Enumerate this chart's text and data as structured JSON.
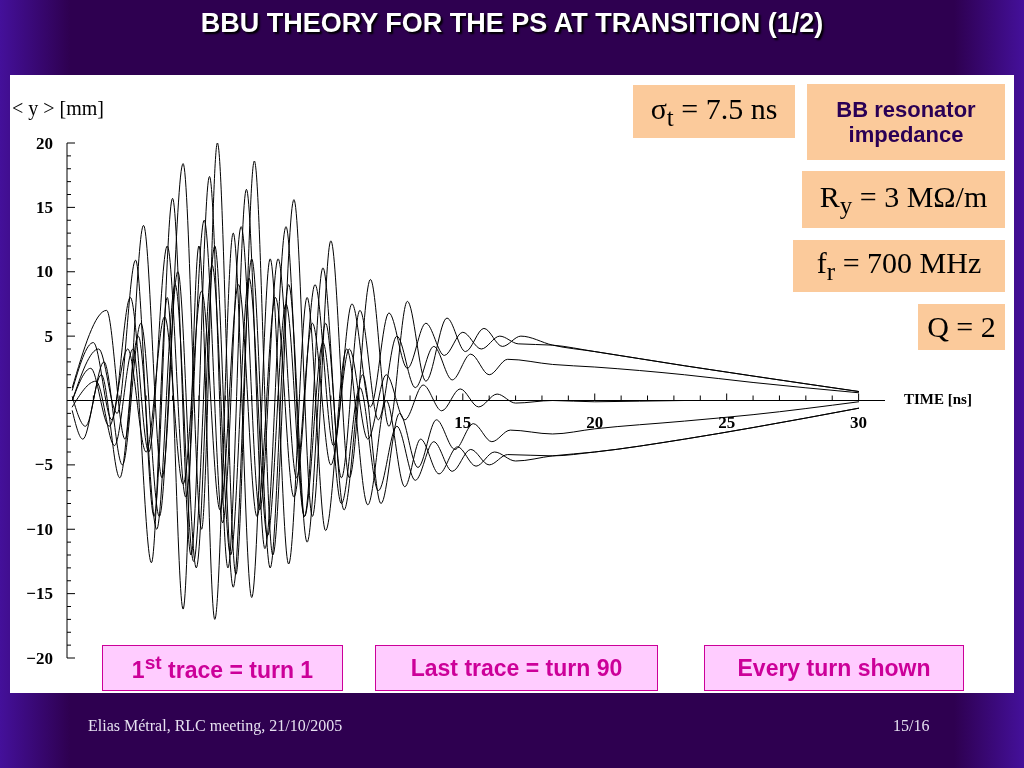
{
  "chart_data": {
    "type": "line",
    "title": "BBU THEORY FOR THE PS AT TRANSITION (1/2)",
    "xlabel": "TIME [ns]",
    "ylabel": "< y > [mm]",
    "xlim": [
      0,
      31
    ],
    "ylim": [
      -20,
      20
    ],
    "xticks": [
      {
        "value": 1,
        "label": null
      },
      {
        "value": 2,
        "label": null
      },
      {
        "value": 3,
        "label": null
      },
      {
        "value": 4,
        "label": null
      },
      {
        "value": 5,
        "label": null
      },
      {
        "value": 6,
        "label": null
      },
      {
        "value": 7,
        "label": null
      },
      {
        "value": 8,
        "label": null
      },
      {
        "value": 9,
        "label": null
      },
      {
        "value": 10,
        "label": null
      },
      {
        "value": 11,
        "label": null
      },
      {
        "value": 12,
        "label": null
      },
      {
        "value": 13,
        "label": null
      },
      {
        "value": 14,
        "label": null
      },
      15,
      {
        "value": 16,
        "label": null
      },
      {
        "value": 17,
        "label": null
      },
      {
        "value": 18,
        "label": null
      },
      {
        "value": 19,
        "label": null
      },
      20,
      {
        "value": 21,
        "label": null
      },
      {
        "value": 22,
        "label": null
      },
      {
        "value": 23,
        "label": null
      },
      {
        "value": 24,
        "label": null
      },
      25,
      {
        "value": 26,
        "label": null
      },
      {
        "value": 27,
        "label": null
      },
      {
        "value": 28,
        "label": null
      },
      {
        "value": 29,
        "label": null
      },
      30
    ],
    "yticks": [
      {
        "value": -20,
        "label": "−20"
      },
      {
        "value": -19,
        "label": null
      },
      {
        "value": -18,
        "label": null
      },
      {
        "value": -17,
        "label": null
      },
      {
        "value": -16,
        "label": null
      },
      {
        "value": -15,
        "label": "−15"
      },
      {
        "value": -14,
        "label": null
      },
      {
        "value": -13,
        "label": null
      },
      {
        "value": -12,
        "label": null
      },
      {
        "value": -11,
        "label": null
      },
      {
        "value": -10,
        "label": "−10"
      },
      {
        "value": -9,
        "label": null
      },
      {
        "value": -8,
        "label": null
      },
      {
        "value": -7,
        "label": null
      },
      {
        "value": -6,
        "label": null
      },
      {
        "value": -5,
        "label": "−5"
      },
      {
        "value": -4,
        "label": null
      },
      {
        "value": -3,
        "label": null
      },
      {
        "value": -2,
        "label": null
      },
      {
        "value": -1,
        "label": null
      },
      {
        "value": 0,
        "label": null
      },
      {
        "value": 1,
        "label": null
      },
      {
        "value": 2,
        "label": null
      },
      {
        "value": 3,
        "label": null
      },
      {
        "value": 4,
        "label": null
      },
      5,
      {
        "value": 6,
        "label": null
      },
      {
        "value": 7,
        "label": null
      },
      {
        "value": 8,
        "label": null
      },
      {
        "value": 9,
        "label": null
      },
      10,
      {
        "value": 11,
        "label": null
      },
      {
        "value": 12,
        "label": null
      },
      {
        "value": 13,
        "label": null
      },
      {
        "value": 14,
        "label": null
      },
      15,
      {
        "value": 16,
        "label": null
      },
      {
        "value": 17,
        "label": null
      },
      {
        "value": 18,
        "label": null
      },
      {
        "value": 19,
        "label": null
      },
      20
    ],
    "series": [
      {
        "color": "#000000",
        "x": [
          0.2,
          1.5,
          2.2,
          2.9,
          3.6,
          4.4,
          5.1,
          5.7,
          6.4,
          7.1,
          7.8,
          8.6,
          9.3,
          10.0,
          10.7,
          11.5,
          12.2,
          12.9,
          13.6,
          14.4,
          15.1,
          15.8,
          16.5,
          17.2,
          18.4,
          20,
          23.4,
          26,
          30
        ],
        "values": [
          1.0,
          7.0,
          -3.0,
          13.6,
          -6.0,
          18.4,
          -10.0,
          20.0,
          -13.5,
          18.6,
          -12.0,
          15.6,
          -9.0,
          12.4,
          -6.0,
          9.4,
          -2.0,
          7.7,
          1.5,
          6.4,
          3.8,
          5.6,
          4.2,
          5.0,
          4.3,
          3.8,
          2.7,
          1.9,
          0.7
        ]
      },
      {
        "color": "#000000",
        "x": [
          0.2,
          1.1,
          1.8,
          2.5,
          3.2,
          3.8,
          4.4,
          5.0,
          5.6,
          6.3,
          7.0,
          7.7,
          8.4,
          9.1,
          9.8,
          10.6,
          11.4,
          12.1,
          12.8,
          13.4,
          14.1,
          14.8,
          15.5,
          16.2,
          17.0,
          18.4,
          20,
          23.4,
          26,
          30
        ],
        "values": [
          -0.5,
          1.5,
          -3.5,
          4.0,
          -12.6,
          8.0,
          -16.2,
          12.0,
          -17.0,
          13.0,
          -15.3,
          11.0,
          -12.7,
          8.0,
          -10.1,
          4.0,
          -8.1,
          0.0,
          -6.7,
          -3.0,
          -5.7,
          -3.6,
          -5.1,
          -4.0,
          -4.7,
          -4.3,
          -4.0,
          -3.0,
          -2.1,
          -0.6
        ]
      },
      {
        "color": "#000000",
        "x": [
          0.2,
          1.2,
          1.9,
          2.6,
          3.3,
          4.0,
          4.7,
          5.4,
          6.1,
          6.8,
          7.5,
          8.3,
          9.0,
          9.7,
          10.4,
          11.1,
          11.8,
          12.5,
          13.2,
          13.9,
          14.6,
          15.3,
          16.0,
          16.7,
          18.4,
          20,
          23.4,
          26,
          30
        ],
        "values": [
          0.0,
          4.0,
          -1.0,
          10.9,
          -9.0,
          15.7,
          -12.0,
          17.4,
          -13.0,
          16.4,
          -11.5,
          13.5,
          -9.0,
          10.3,
          -6.0,
          7.0,
          -1.5,
          5.0,
          1.0,
          4.2,
          1.6,
          3.6,
          2.0,
          3.2,
          2.8,
          2.6,
          2.0,
          1.4,
          0.6
        ]
      },
      {
        "color": "#000000",
        "x": [
          0.2,
          0.7,
          1.4,
          2.1,
          2.8,
          3.5,
          4.2,
          4.9,
          5.6,
          6.3,
          7.0,
          7.7,
          8.4,
          9.1,
          9.8,
          10.5,
          11.2,
          11.9,
          12.6,
          13.3,
          14.0,
          14.7,
          15.4,
          16.1,
          16.8,
          18.4,
          20,
          23.4,
          26,
          30
        ],
        "values": [
          0.3,
          -2.0,
          3.0,
          -5.0,
          6.0,
          -9.0,
          10.0,
          -13.0,
          12.0,
          -14.5,
          11.0,
          -13.0,
          9.0,
          -11.0,
          6.0,
          -8.5,
          2.0,
          -8.0,
          -1.0,
          -5.2,
          -1.5,
          -3.8,
          -1.8,
          -3.2,
          -2.3,
          -2.6,
          -2.2,
          -1.6,
          -1.1,
          -0.1
        ]
      },
      {
        "color": "#000000",
        "x": [
          0.2,
          0.9,
          1.6,
          2.3,
          3.0,
          3.7,
          4.4,
          5.1,
          5.8,
          6.5,
          7.2,
          7.9,
          8.6,
          9.3,
          10.0,
          10.7,
          11.4,
          12.1,
          12.8,
          13.5,
          14.2,
          14.9,
          15.6,
          16.3,
          17.0,
          18.4,
          20,
          23.4,
          26,
          30
        ],
        "values": [
          0.0,
          2.5,
          -2.0,
          4.0,
          -4.0,
          6.5,
          -6.5,
          8.5,
          -8.5,
          9.0,
          -9.0,
          8.0,
          -7.5,
          6.0,
          -5.0,
          4.0,
          -3.0,
          2.0,
          -1.5,
          1.2,
          -0.8,
          0.9,
          -0.5,
          0.5,
          -0.2,
          0.0,
          -0.1,
          0.0,
          0.0,
          0.0
        ]
      },
      {
        "color": "#000000",
        "x": [
          0.2,
          1.0,
          1.7,
          2.4,
          3.1,
          3.8,
          4.5,
          5.2,
          5.9,
          6.6,
          7.3,
          8.0,
          8.7,
          9.4,
          10.1,
          10.8,
          11.5,
          12.2,
          12.9,
          13.6,
          14.3,
          15.0,
          15.7,
          16.4,
          17.1,
          18.4,
          20,
          23.4,
          26,
          30
        ],
        "values": [
          0.8,
          4.5,
          -1.5,
          8.0,
          -4.0,
          12.0,
          -7.5,
          14.0,
          -9.5,
          13.5,
          -8.5,
          11.0,
          -6.0,
          9.0,
          -3.5,
          7.5,
          -0.5,
          6.8,
          2.5,
          6.0,
          3.5,
          5.3,
          4.0,
          5.0,
          4.4,
          4.3,
          3.8,
          2.7,
          1.9,
          0.7
        ]
      },
      {
        "color": "#000000",
        "x": [
          0.2,
          0.6,
          1.3,
          2.0,
          2.7,
          3.4,
          4.1,
          4.8,
          5.5,
          6.2,
          6.9,
          7.6,
          8.3,
          9.0,
          9.7,
          10.4,
          11.1,
          11.8,
          12.5,
          13.2,
          13.9,
          14.6,
          15.3,
          16.0,
          16.7,
          18.4,
          20,
          23.4,
          26,
          30
        ],
        "values": [
          -0.8,
          -3.0,
          2.0,
          -6.0,
          5.0,
          -10.0,
          9.0,
          -12.5,
          10.5,
          -12.0,
          9.5,
          -10.5,
          7.5,
          -9.0,
          4.5,
          -8.0,
          1.0,
          -7.0,
          -2.0,
          -6.2,
          -3.2,
          -5.5,
          -3.8,
          -5.0,
          -4.2,
          -4.3,
          -4.0,
          -3.0,
          -2.1,
          -0.6
        ]
      }
    ],
    "annotations": [
      "σ$_{t}$ = 7.5 ns",
      "BB resonator impedance",
      "R$_{y}$ = 3 MΩ/m",
      "f$_{r}$ = 700 MHz",
      "Q = 2",
      "1$^{st}$ trace = turn 1",
      "Last trace = turn 90",
      "Every turn shown",
      "Elias Métral, RLC meeting, 21/10/2005",
      "15/16"
    ]
  }
}
